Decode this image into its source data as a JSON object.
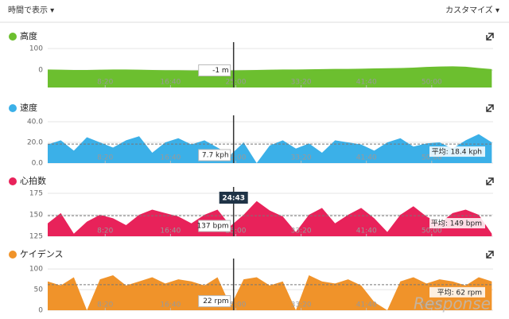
{
  "header": {
    "view_by": "時間で表示 ▾",
    "customize": "カスタマイズ ▾",
    "watermark": "Response"
  },
  "chart_data": [
    {
      "type": "area",
      "title": "高度",
      "color": "#6cbf2f",
      "x": [
        60,
        160,
        260,
        360,
        460,
        560,
        660,
        760,
        860,
        960,
        1060,
        1160,
        1260,
        1360,
        1460,
        1560,
        1660,
        1760,
        1860,
        1960,
        2060,
        2160,
        2260,
        2360,
        2460,
        2560,
        2660,
        2760,
        2860,
        2960,
        3060,
        3160,
        3260,
        3360,
        3460
      ],
      "values": [
        3,
        2,
        1,
        1,
        2,
        3,
        3,
        2,
        1,
        0,
        0,
        -1,
        -1,
        -1,
        -1,
        0,
        1,
        2,
        3,
        3,
        4,
        5,
        6,
        6,
        7,
        8,
        9,
        10,
        12,
        15,
        17,
        18,
        16,
        10,
        5
      ],
      "xlim": [
        60,
        3470
      ],
      "xticks": [
        {
          "value": 500,
          "label": "8:20"
        },
        {
          "value": 1000,
          "label": "16:40"
        },
        {
          "value": 1500,
          "label": "25:00"
        },
        {
          "value": 2000,
          "label": "33:20"
        },
        {
          "value": 2500,
          "label": "41:40"
        },
        {
          "value": 3000,
          "label": "50:00"
        }
      ],
      "ylim": [
        -80,
        100
      ],
      "yticks": [
        0,
        100
      ],
      "cursor_x": 1483,
      "cursor_value": -1,
      "cursor_label": "-1 m"
    },
    {
      "type": "area",
      "title": "速度",
      "color": "#3bb0e8",
      "x": [
        60,
        160,
        260,
        360,
        460,
        560,
        660,
        760,
        860,
        960,
        1060,
        1160,
        1260,
        1360,
        1460,
        1560,
        1660,
        1760,
        1860,
        1960,
        2060,
        2160,
        2260,
        2360,
        2460,
        2560,
        2660,
        2760,
        2860,
        2960,
        3060,
        3160,
        3260,
        3360,
        3460
      ],
      "values": [
        18,
        22,
        12,
        25,
        20,
        15,
        22,
        26,
        10,
        20,
        24,
        18,
        22,
        15,
        8,
        20,
        0,
        17,
        22,
        14,
        19,
        10,
        22,
        20,
        18,
        12,
        20,
        24,
        16,
        19,
        20,
        14,
        22,
        28,
        20
      ],
      "xlim": [
        60,
        3470
      ],
      "xticks": [
        {
          "value": 500,
          "label": "8:20"
        },
        {
          "value": 1000,
          "label": "16:40"
        },
        {
          "value": 1500,
          "label": "25:00"
        },
        {
          "value": 2000,
          "label": "33:20"
        },
        {
          "value": 2500,
          "label": "41:40"
        },
        {
          "value": 3000,
          "label": "50:00"
        }
      ],
      "ylim": [
        0,
        40
      ],
      "yticks": [
        {
          "value": 0,
          "label": "0.0"
        },
        {
          "value": 20,
          "label": "20.0"
        },
        {
          "value": 40,
          "label": "40.0"
        }
      ],
      "average": 18.4,
      "average_label": "平均: 18.4 kph",
      "cursor_x": 1483,
      "cursor_value": 7.7,
      "cursor_label": "7.7 kph"
    },
    {
      "type": "area",
      "title": "心拍数",
      "color": "#e8225a",
      "x": [
        60,
        160,
        260,
        360,
        460,
        560,
        660,
        760,
        860,
        960,
        1060,
        1160,
        1260,
        1360,
        1460,
        1560,
        1660,
        1760,
        1860,
        1960,
        2060,
        2160,
        2260,
        2360,
        2460,
        2560,
        2660,
        2760,
        2860,
        2960,
        3060,
        3160,
        3260,
        3360,
        3460
      ],
      "values": [
        140,
        152,
        128,
        142,
        150,
        146,
        138,
        150,
        156,
        152,
        148,
        140,
        150,
        156,
        137,
        150,
        166,
        155,
        148,
        130,
        150,
        158,
        140,
        150,
        158,
        146,
        130,
        150,
        160,
        148,
        140,
        152,
        156,
        150,
        128
      ],
      "xlim": [
        60,
        3470
      ],
      "xticks": [
        {
          "value": 500,
          "label": "8:20"
        },
        {
          "value": 1000,
          "label": "16:40"
        },
        {
          "value": 1500,
          "label": "25:00"
        },
        {
          "value": 2000,
          "label": "33:20"
        },
        {
          "value": 2500,
          "label": "41:40"
        },
        {
          "value": 3000,
          "label": "50:00"
        }
      ],
      "ylim": [
        125,
        175
      ],
      "yticks": [
        125,
        150,
        175
      ],
      "average": 149,
      "average_label": "平均: 149 bpm",
      "cursor_x": 1483,
      "cursor_time_label": "24:43",
      "cursor_value": 137,
      "cursor_label": "137 bpm"
    },
    {
      "type": "area",
      "title": "ケイデンス",
      "color": "#f0932a",
      "x": [
        60,
        160,
        260,
        360,
        460,
        560,
        660,
        760,
        860,
        960,
        1060,
        1160,
        1260,
        1360,
        1460,
        1560,
        1660,
        1760,
        1860,
        1960,
        2060,
        2160,
        2260,
        2360,
        2460,
        2560,
        2660,
        2760,
        2860,
        2960,
        3060,
        3160,
        3260,
        3360,
        3460
      ],
      "values": [
        70,
        60,
        80,
        0,
        75,
        85,
        60,
        70,
        80,
        65,
        75,
        70,
        60,
        80,
        10,
        75,
        80,
        60,
        70,
        0,
        85,
        70,
        65,
        75,
        60,
        20,
        0,
        70,
        80,
        65,
        75,
        70,
        60,
        80,
        70
      ],
      "xlim": [
        60,
        3470
      ],
      "xticks": [
        {
          "value": 500,
          "label": "8:20"
        },
        {
          "value": 1000,
          "label": "16:40"
        },
        {
          "value": 1500,
          "label": "25:00"
        },
        {
          "value": 2000,
          "label": "33:20"
        },
        {
          "value": 2500,
          "label": "41:40"
        },
        {
          "value": 3000,
          "label": "50:00"
        }
      ],
      "ylim": [
        0,
        110
      ],
      "yticks": [
        0,
        50,
        100
      ],
      "average": 62,
      "average_label": "平均: 62 rpm",
      "cursor_x": 1483,
      "cursor_value": 22,
      "cursor_label": "22 rpm"
    }
  ]
}
